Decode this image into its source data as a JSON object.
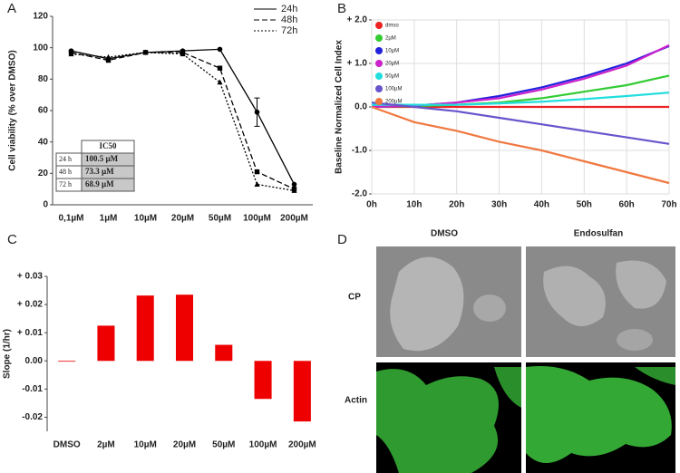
{
  "panel_labels": [
    "A",
    "B",
    "C",
    "D"
  ],
  "chart_data": [
    {
      "type": "line",
      "ylabel": "Cell viability (% over DMSO)",
      "categories": [
        "0,1µM",
        "1µM",
        "10µM",
        "20µM",
        "50µM",
        "100µM",
        "200µM"
      ],
      "ylim": [
        0,
        120
      ],
      "yticks": [
        0,
        20,
        40,
        60,
        80,
        100,
        120
      ],
      "series": [
        {
          "name": "24h",
          "color": "#000000",
          "dash": "solid",
          "marker": "circle",
          "values": [
            98,
            93,
            97,
            98,
            99,
            59,
            13
          ],
          "errors": [
            null,
            null,
            null,
            null,
            null,
            9,
            null
          ]
        },
        {
          "name": "48h",
          "color": "#000000",
          "dash": "dashed",
          "marker": "square",
          "values": [
            97,
            92,
            97,
            97,
            87,
            21,
            10
          ]
        },
        {
          "name": "72h",
          "color": "#000000",
          "dash": "dotted",
          "marker": "triangle",
          "values": [
            96,
            94,
            97,
            96,
            78,
            13,
            9
          ]
        }
      ],
      "inset_table": {
        "header": "IC50",
        "rows": [
          [
            "24 h",
            "100.5 µM"
          ],
          [
            "48 h",
            "73.3 µM"
          ],
          [
            "72 h",
            "68.9 µM"
          ]
        ]
      }
    },
    {
      "type": "line",
      "ylabel": "Baseline Normalized Cell Index",
      "grid": true,
      "x": [
        0,
        10,
        20,
        30,
        40,
        50,
        60,
        70
      ],
      "xlim": [
        0,
        70
      ],
      "xticks": [
        {
          "value": 0,
          "label": "0h"
        },
        {
          "value": 10,
          "label": "10h"
        },
        {
          "value": 20,
          "label": "20h"
        },
        {
          "value": 30,
          "label": "30h"
        },
        {
          "value": 40,
          "label": "40h"
        },
        {
          "value": 50,
          "label": "50h"
        },
        {
          "value": 60,
          "label": "60h"
        },
        {
          "value": 70,
          "label": "70h"
        }
      ],
      "ylim": [
        -2,
        2
      ],
      "yticks": [
        {
          "value": 2,
          "label": "+ 2.0"
        },
        {
          "value": 1,
          "label": "+ 1.0"
        },
        {
          "value": 0,
          "label": "0.0"
        },
        {
          "value": -1,
          "label": "-1.0"
        },
        {
          "value": -2,
          "label": "-2.0"
        }
      ],
      "series": [
        {
          "name": "dmso",
          "color": "#ee2222",
          "values": [
            0,
            0,
            0,
            0,
            0,
            0,
            0,
            0
          ]
        },
        {
          "name": "2µM",
          "color": "#33cc33",
          "values": [
            0,
            0.02,
            0.05,
            0.1,
            0.2,
            0.35,
            0.5,
            0.72
          ]
        },
        {
          "name": "10µM",
          "color": "#2222dd",
          "values": [
            0,
            0.03,
            0.1,
            0.25,
            0.45,
            0.7,
            1.0,
            1.4
          ]
        },
        {
          "name": "20µM",
          "color": "#cc22cc",
          "values": [
            0,
            0.03,
            0.1,
            0.2,
            0.4,
            0.65,
            0.95,
            1.42
          ]
        },
        {
          "name": "50µM",
          "color": "#22dddd",
          "values": [
            0.05,
            0.05,
            0.05,
            0.08,
            0.12,
            0.18,
            0.25,
            0.33
          ]
        },
        {
          "name": "100µM",
          "color": "#6655cc",
          "values": [
            0.1,
            0,
            -0.1,
            -0.25,
            -0.4,
            -0.55,
            -0.7,
            -0.85
          ]
        },
        {
          "name": "200µM",
          "color": "#f07840",
          "values": [
            0,
            -0.35,
            -0.55,
            -0.8,
            -1.0,
            -1.25,
            -1.5,
            -1.75
          ]
        }
      ]
    },
    {
      "type": "bar",
      "ylabel": "Slope (1/hr)",
      "color": "#ee0000",
      "categories": [
        "DMSO",
        "2µM",
        "10µM",
        "20µM",
        "50µM",
        "100µM",
        "200µM"
      ],
      "values": [
        0,
        0.0125,
        0.0232,
        0.0235,
        0.0057,
        -0.0135,
        -0.0215
      ],
      "ylim": [
        -0.025,
        0.03
      ],
      "yticks": [
        {
          "value": 0.03,
          "label": "+ 0.03"
        },
        {
          "value": 0.02,
          "label": "+ 0.02"
        },
        {
          "value": 0.01,
          "label": "+ 0.01"
        },
        {
          "value": 0,
          "label": "0.00"
        },
        {
          "value": -0.01,
          "label": "-0.01"
        },
        {
          "value": -0.02,
          "label": "-0.02"
        }
      ]
    }
  ],
  "panel_d": {
    "columns": [
      "DMSO",
      "Endosulfan"
    ],
    "rows": [
      "CP",
      "Actin"
    ]
  }
}
